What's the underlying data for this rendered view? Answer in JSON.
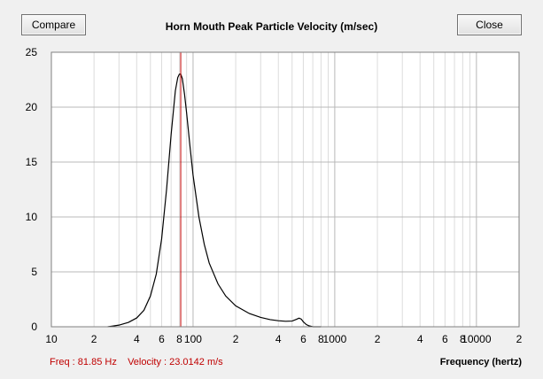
{
  "toolbar": {
    "compare_label": "Compare",
    "close_label": "Close"
  },
  "colors": {
    "curve": "#000000",
    "cursor_line": "#c00000",
    "status_text": "#c00000",
    "grid_major": "#b8b8b8",
    "grid_minor": "#dcdcdc",
    "plot_background": "#ffffff"
  },
  "status": {
    "freq_text": "Freq : 81.85 Hz",
    "velocity_text": "Velocity : 23.0142 m/s"
  },
  "chart_data": {
    "type": "line",
    "title": "Horn Mouth Peak Particle Velocity (m/sec)",
    "xlabel": "Frequency (hertz)",
    "ylabel": "",
    "x_scale": "log",
    "xlim": [
      10,
      20000
    ],
    "ylim": [
      0,
      25
    ],
    "grid": true,
    "y_ticks": [
      "0",
      "5",
      "10",
      "15",
      "20",
      "25"
    ],
    "x_ticks": [
      {
        "value": 10,
        "label": "10"
      },
      {
        "value": 20,
        "label": "2"
      },
      {
        "value": 40,
        "label": "4"
      },
      {
        "value": 60,
        "label": "6"
      },
      {
        "value": 80,
        "label": "8"
      },
      {
        "value": 100,
        "label": "100"
      },
      {
        "value": 200,
        "label": "2"
      },
      {
        "value": 400,
        "label": "4"
      },
      {
        "value": 600,
        "label": "6"
      },
      {
        "value": 800,
        "label": "8"
      },
      {
        "value": 1000,
        "label": "1000"
      },
      {
        "value": 2000,
        "label": "2"
      },
      {
        "value": 4000,
        "label": "4"
      },
      {
        "value": 6000,
        "label": "6"
      },
      {
        "value": 8000,
        "label": "8"
      },
      {
        "value": 10000,
        "label": "10000"
      },
      {
        "value": 20000,
        "label": "2"
      }
    ],
    "cursor_x": 81.85,
    "series": [
      {
        "x": [
          25,
          30,
          35,
          40,
          45,
          50,
          55,
          60,
          65,
          70,
          75,
          78,
          80,
          81.85,
          84,
          87,
          90,
          95,
          100,
          110,
          120,
          130,
          150,
          170,
          200,
          250,
          300,
          350,
          400,
          450,
          500,
          530,
          560,
          580,
          600,
          630,
          660,
          700,
          800
        ],
        "y": [
          0.0,
          0.15,
          0.4,
          0.8,
          1.5,
          2.8,
          4.8,
          8.0,
          12.5,
          17.5,
          21.5,
          22.7,
          23.0,
          23.0142,
          22.6,
          21.2,
          19.5,
          16.5,
          13.8,
          10.0,
          7.5,
          5.8,
          3.9,
          2.8,
          1.9,
          1.2,
          0.85,
          0.65,
          0.55,
          0.5,
          0.52,
          0.65,
          0.78,
          0.7,
          0.45,
          0.2,
          0.08,
          0.0,
          0.0
        ]
      }
    ]
  }
}
